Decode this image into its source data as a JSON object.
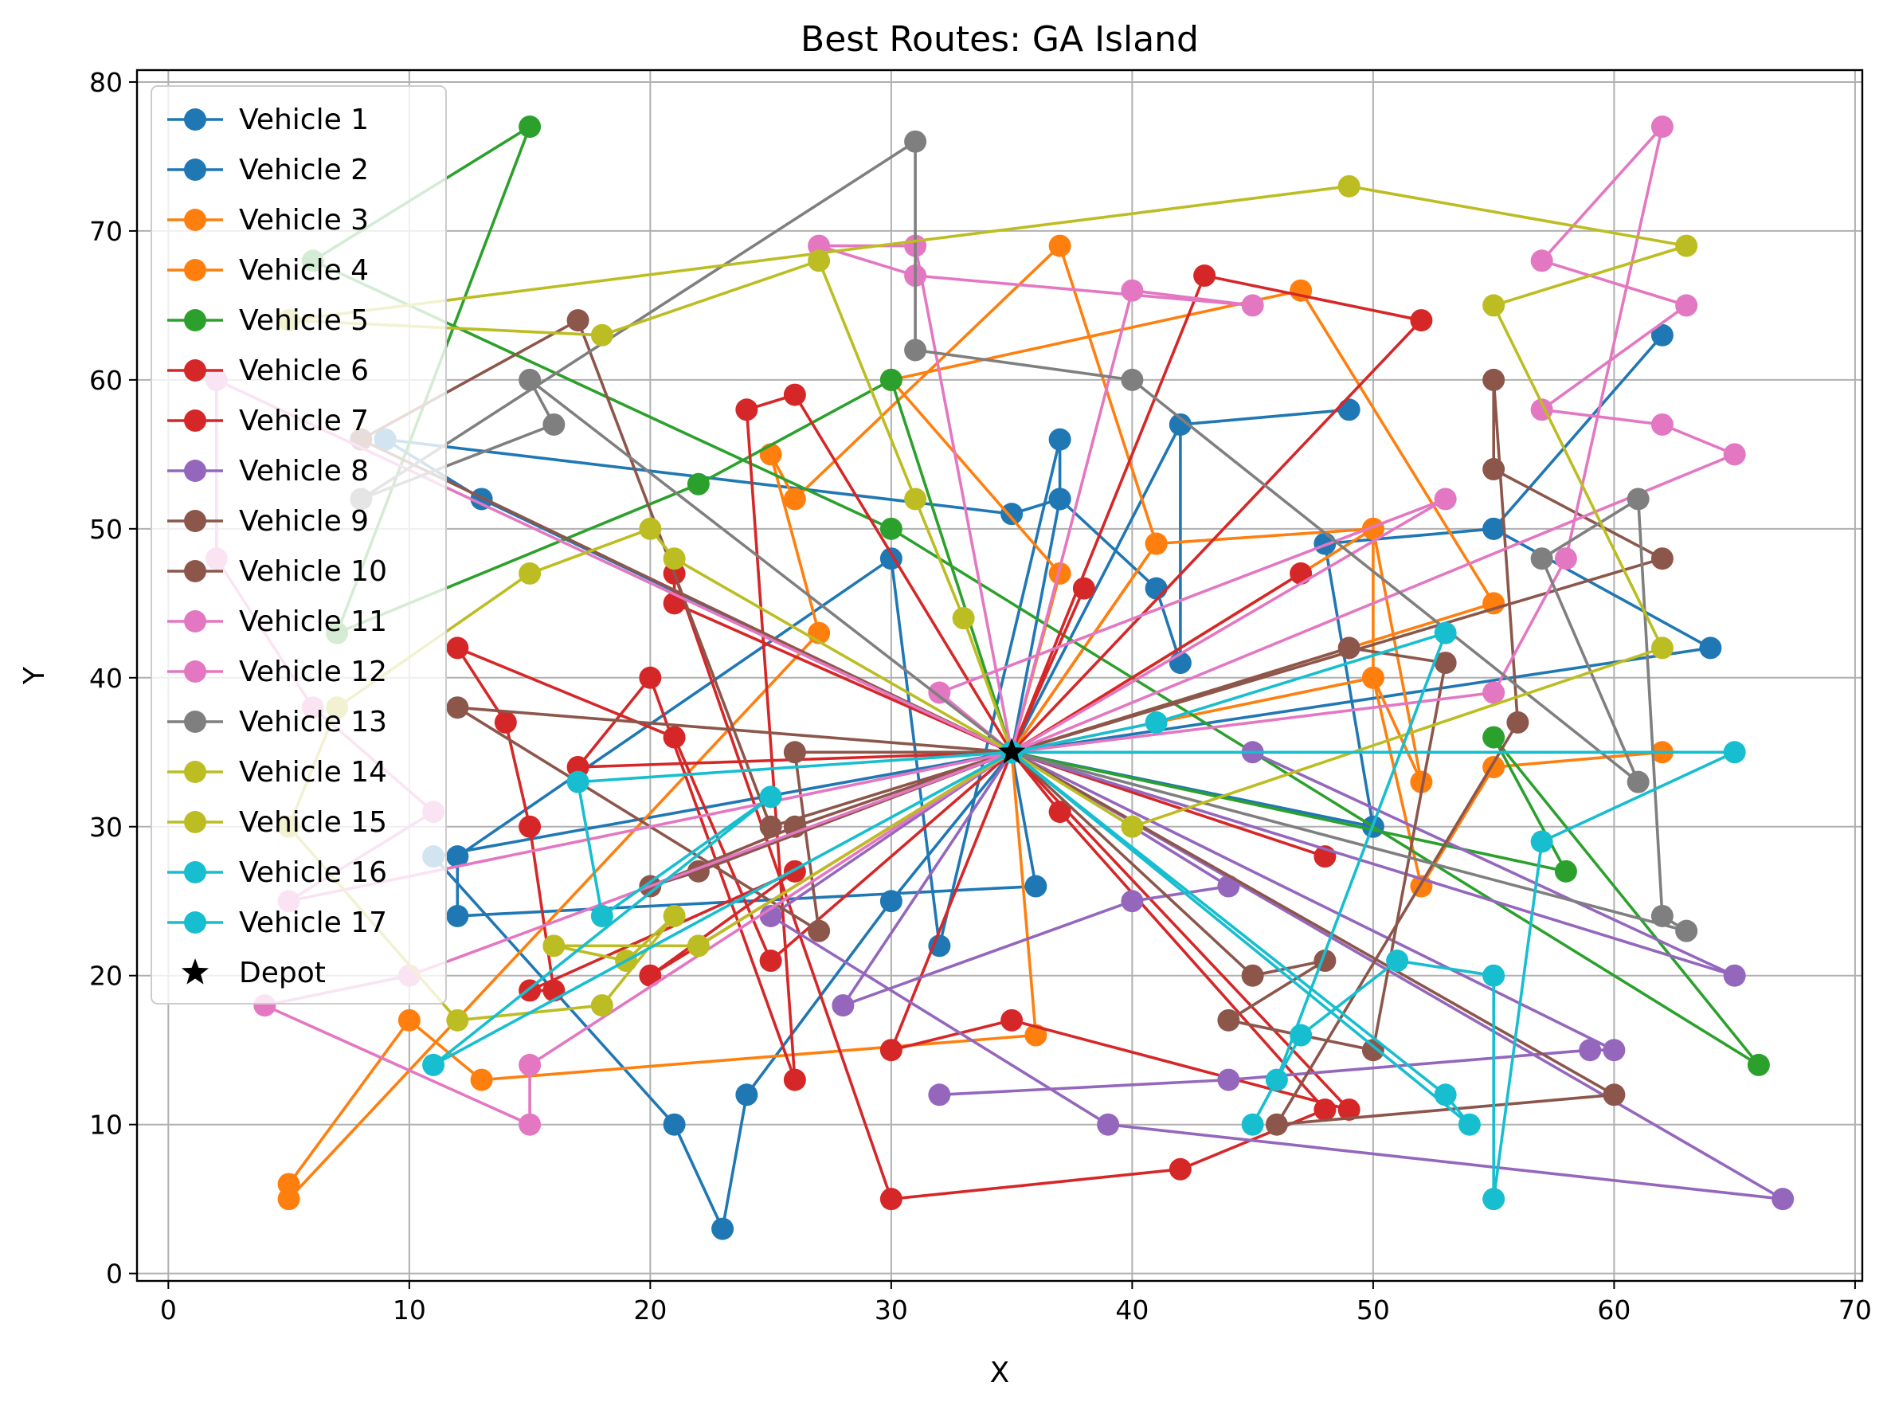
{
  "chart_data": {
    "type": "line",
    "title": "Best Routes: GA Island",
    "xlabel": "X",
    "ylabel": "Y",
    "xlim": [
      -1.3,
      70.3
    ],
    "ylim": [
      -0.5,
      80.8
    ],
    "xticks": [
      0,
      10,
      20,
      30,
      40,
      50,
      60,
      70
    ],
    "yticks": [
      0,
      10,
      20,
      30,
      40,
      50,
      60,
      70,
      80
    ],
    "grid": true,
    "legend_position": "upper-left",
    "depot": {
      "name": "Depot",
      "x": 35,
      "y": 35,
      "color": "#000000",
      "marker": "star"
    },
    "series": [
      {
        "name": "Vehicle 1",
        "color": "#1f77b4",
        "points": [
          [
            35,
            35
          ],
          [
            36,
            26
          ],
          [
            12,
            24
          ],
          [
            12,
            28
          ],
          [
            30,
            48
          ],
          [
            32,
            22
          ],
          [
            37,
            56
          ],
          [
            37,
            52
          ],
          [
            35,
            51
          ],
          [
            9,
            56
          ],
          [
            13,
            52
          ],
          [
            35,
            35
          ]
        ]
      },
      {
        "name": "Vehicle 2",
        "color": "#1f77b4",
        "points": [
          [
            35,
            35
          ],
          [
            42,
            57
          ],
          [
            49,
            58
          ],
          [
            42,
            57
          ],
          [
            42,
            41
          ],
          [
            41,
            46
          ],
          [
            37,
            52
          ],
          [
            35,
            35
          ],
          [
            50,
            30
          ],
          [
            48,
            49
          ],
          [
            55,
            50
          ],
          [
            62,
            63
          ],
          [
            55,
            50
          ],
          [
            64,
            42
          ],
          [
            35,
            35
          ],
          [
            30,
            25
          ],
          [
            24,
            12
          ],
          [
            23,
            3
          ],
          [
            21,
            10
          ],
          [
            11,
            28
          ],
          [
            35,
            35
          ]
        ]
      },
      {
        "name": "Vehicle 3",
        "color": "#ff7f0e",
        "points": [
          [
            35,
            35
          ],
          [
            41,
            49
          ],
          [
            50,
            50
          ],
          [
            52,
            33
          ],
          [
            50,
            40
          ],
          [
            35,
            35
          ],
          [
            62,
            35
          ],
          [
            55,
            34
          ],
          [
            52,
            26
          ],
          [
            50,
            40
          ],
          [
            50,
            50
          ],
          [
            35,
            35
          ]
        ]
      },
      {
        "name": "Vehicle 4",
        "color": "#ff7f0e",
        "points": [
          [
            35,
            35
          ],
          [
            37,
            47
          ],
          [
            30,
            60
          ],
          [
            47,
            66
          ],
          [
            55,
            45
          ],
          [
            35,
            35
          ],
          [
            36,
            16
          ],
          [
            13,
            13
          ],
          [
            10,
            17
          ],
          [
            5,
            6
          ],
          [
            5,
            5
          ],
          [
            27,
            43
          ],
          [
            25,
            55
          ],
          [
            26,
            52
          ],
          [
            37,
            69
          ],
          [
            41,
            49
          ],
          [
            35,
            35
          ]
        ]
      },
      {
        "name": "Vehicle 5",
        "color": "#2ca02c",
        "points": [
          [
            35,
            35
          ],
          [
            58,
            27
          ],
          [
            55,
            36
          ],
          [
            66,
            14
          ],
          [
            30,
            50
          ],
          [
            6,
            68
          ],
          [
            15,
            77
          ],
          [
            7,
            43
          ],
          [
            22,
            53
          ],
          [
            30,
            60
          ],
          [
            35,
            35
          ]
        ]
      },
      {
        "name": "Vehicle 6",
        "color": "#d62728",
        "points": [
          [
            35,
            35
          ],
          [
            26,
            59
          ],
          [
            24,
            58
          ],
          [
            26,
            13
          ],
          [
            20,
            40
          ],
          [
            17,
            34
          ],
          [
            35,
            35
          ],
          [
            21,
            45
          ],
          [
            21,
            47
          ],
          [
            30,
            5
          ],
          [
            42,
            7
          ],
          [
            48,
            11
          ],
          [
            37,
            31
          ],
          [
            35,
            35
          ]
        ]
      },
      {
        "name": "Vehicle 7",
        "color": "#d62728",
        "points": [
          [
            35,
            35
          ],
          [
            38,
            46
          ],
          [
            35,
            35
          ],
          [
            43,
            67
          ],
          [
            52,
            64
          ],
          [
            35,
            35
          ],
          [
            47,
            47
          ],
          [
            35,
            35
          ],
          [
            48,
            28
          ],
          [
            35,
            35
          ],
          [
            30,
            15
          ],
          [
            35,
            17
          ],
          [
            49,
            11
          ],
          [
            35,
            35
          ],
          [
            25,
            21
          ],
          [
            21,
            36
          ],
          [
            12,
            42
          ],
          [
            14,
            37
          ],
          [
            15,
            30
          ],
          [
            16,
            19
          ],
          [
            15,
            19
          ],
          [
            26,
            27
          ],
          [
            20,
            20
          ],
          [
            35,
            35
          ]
        ]
      },
      {
        "name": "Vehicle 8",
        "color": "#9467bd",
        "points": [
          [
            35,
            35
          ],
          [
            45,
            35
          ],
          [
            65,
            20
          ],
          [
            35,
            35
          ],
          [
            44,
            26
          ],
          [
            40,
            25
          ],
          [
            28,
            18
          ],
          [
            35,
            35
          ],
          [
            67,
            5
          ],
          [
            39,
            10
          ],
          [
            25,
            24
          ],
          [
            35,
            35
          ],
          [
            60,
            15
          ],
          [
            59,
            15
          ],
          [
            44,
            13
          ],
          [
            32,
            12
          ]
        ]
      },
      {
        "name": "Vehicle 9",
        "color": "#8c564b",
        "points": [
          [
            35,
            35
          ],
          [
            62,
            48
          ],
          [
            55,
            54
          ],
          [
            55,
            60
          ],
          [
            56,
            37
          ],
          [
            46,
            10
          ],
          [
            60,
            12
          ],
          [
            35,
            35
          ],
          [
            26,
            35
          ],
          [
            27,
            23
          ],
          [
            12,
            38
          ],
          [
            35,
            35
          ]
        ]
      },
      {
        "name": "Vehicle 10",
        "color": "#8c564b",
        "points": [
          [
            35,
            35
          ],
          [
            49,
            42
          ],
          [
            53,
            41
          ],
          [
            50,
            15
          ],
          [
            44,
            17
          ],
          [
            48,
            21
          ],
          [
            45,
            20
          ],
          [
            35,
            35
          ],
          [
            26,
            30
          ],
          [
            20,
            26
          ],
          [
            22,
            27
          ],
          [
            35,
            35
          ],
          [
            25,
            30
          ],
          [
            17,
            64
          ],
          [
            8,
            56
          ],
          [
            35,
            35
          ]
        ]
      },
      {
        "name": "Vehicle 11",
        "color": "#e377c2",
        "points": [
          [
            35,
            35
          ],
          [
            31,
            69
          ],
          [
            27,
            69
          ],
          [
            31,
            67
          ],
          [
            45,
            65
          ],
          [
            40,
            66
          ],
          [
            35,
            35
          ],
          [
            55,
            39
          ],
          [
            58,
            48
          ],
          [
            62,
            77
          ],
          [
            57,
            68
          ],
          [
            63,
            65
          ],
          [
            57,
            58
          ],
          [
            62,
            57
          ],
          [
            65,
            55
          ],
          [
            35,
            35
          ]
        ]
      },
      {
        "name": "Vehicle 12",
        "color": "#e377c2",
        "points": [
          [
            35,
            35
          ],
          [
            2,
            60
          ],
          [
            2,
            48
          ],
          [
            6,
            38
          ],
          [
            11,
            31
          ],
          [
            5,
            25
          ],
          [
            35,
            35
          ],
          [
            10,
            20
          ],
          [
            4,
            18
          ],
          [
            15,
            10
          ],
          [
            15,
            14
          ],
          [
            35,
            35
          ],
          [
            32,
            39
          ],
          [
            53,
            52
          ],
          [
            35,
            35
          ]
        ]
      },
      {
        "name": "Vehicle 13",
        "color": "#7f7f7f",
        "points": [
          [
            35,
            35
          ],
          [
            15,
            60
          ],
          [
            16,
            57
          ],
          [
            8,
            52
          ],
          [
            31,
            76
          ],
          [
            31,
            62
          ],
          [
            40,
            60
          ],
          [
            61,
            33
          ],
          [
            57,
            48
          ],
          [
            61,
            52
          ],
          [
            62,
            24
          ],
          [
            63,
            23
          ],
          [
            35,
            35
          ]
        ]
      },
      {
        "name": "Vehicle 14",
        "color": "#bcbd22",
        "points": [
          [
            35,
            35
          ],
          [
            33,
            44
          ],
          [
            31,
            52
          ],
          [
            27,
            68
          ],
          [
            18,
            63
          ],
          [
            5,
            64
          ],
          [
            49,
            73
          ],
          [
            63,
            69
          ],
          [
            55,
            65
          ],
          [
            62,
            42
          ],
          [
            40,
            30
          ],
          [
            35,
            35
          ]
        ]
      },
      {
        "name": "Vehicle 15",
        "color": "#bcbd22",
        "points": [
          [
            35,
            35
          ],
          [
            21,
            48
          ],
          [
            20,
            50
          ],
          [
            15,
            47
          ],
          [
            7,
            38
          ],
          [
            5,
            30
          ],
          [
            12,
            17
          ],
          [
            18,
            18
          ],
          [
            21,
            24
          ],
          [
            19,
            21
          ],
          [
            16,
            22
          ],
          [
            22,
            22
          ],
          [
            35,
            35
          ]
        ]
      },
      {
        "name": "Vehicle 16",
        "color": "#17becf",
        "points": [
          [
            35,
            35
          ],
          [
            41,
            37
          ],
          [
            53,
            43
          ],
          [
            46,
            13
          ],
          [
            45,
            10
          ],
          [
            47,
            16
          ],
          [
            51,
            21
          ],
          [
            55,
            20
          ],
          [
            55,
            5
          ],
          [
            57,
            29
          ],
          [
            65,
            35
          ],
          [
            35,
            35
          ]
        ]
      },
      {
        "name": "Vehicle 17",
        "color": "#17becf",
        "points": [
          [
            35,
            35
          ],
          [
            17,
            33
          ],
          [
            18,
            24
          ],
          [
            25,
            32
          ],
          [
            11,
            14
          ],
          [
            35,
            35
          ],
          [
            53,
            12
          ],
          [
            54,
            10
          ],
          [
            35,
            35
          ]
        ]
      }
    ]
  }
}
